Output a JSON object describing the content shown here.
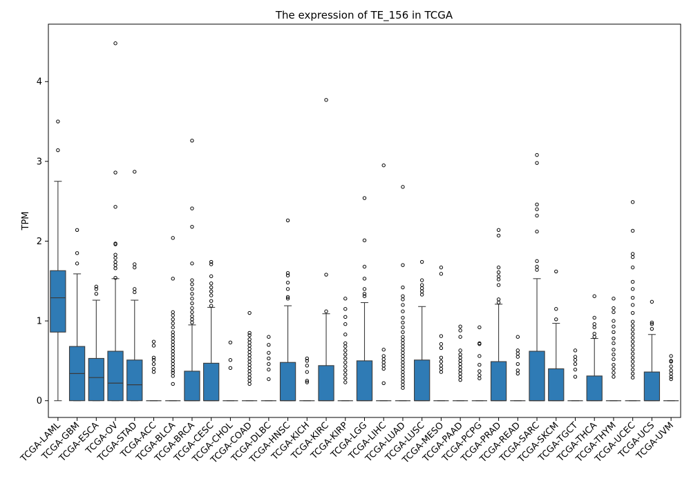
{
  "chart_data": {
    "type": "box",
    "title": "The expression of TE_156 in TCGA",
    "xlabel": "",
    "ylabel": "TPM",
    "ylim": [
      -0.21,
      4.72
    ],
    "yticks": [
      "0",
      "1",
      "2",
      "3",
      "4"
    ],
    "grid": false,
    "colors": {
      "box": "#2f7bb5",
      "edge": "#3a3a3a",
      "median": "#3a3a3a"
    },
    "categories": [
      "TCGA-LAML",
      "TCGA-GBM",
      "TCGA-ESCA",
      "TCGA-OV",
      "TCGA-STAD",
      "TCGA-ACC",
      "TCGA-BLCA",
      "TCGA-BRCA",
      "TCGA-CESC",
      "TCGA-CHOL",
      "TCGA-COAD",
      "TCGA-DLBC",
      "TCGA-HNSC",
      "TCGA-KICH",
      "TCGA-KIRC",
      "TCGA-KIRP",
      "TCGA-LGG",
      "TCGA-LIHC",
      "TCGA-LUAD",
      "TCGA-LUSC",
      "TCGA-MESO",
      "TCGA-PAAD",
      "TCGA-PCPG",
      "TCGA-PRAD",
      "TCGA-READ",
      "TCGA-SARC",
      "TCGA-SKCM",
      "TCGA-TGCT",
      "TCGA-THCA",
      "TCGA-THYM",
      "TCGA-UCEC",
      "TCGA-UCS",
      "TCGA-UVM"
    ],
    "boxes": [
      {
        "whislo": 0,
        "q1": 0.86,
        "med": 1.29,
        "q3": 1.63,
        "whishi": 2.75,
        "fliers": [
          3.14,
          3.5
        ]
      },
      {
        "whislo": 0,
        "q1": 0,
        "med": 0.34,
        "q3": 0.68,
        "whishi": 1.59,
        "fliers": [
          1.72,
          1.85,
          2.14
        ]
      },
      {
        "whislo": 0,
        "q1": 0,
        "med": 0.29,
        "q3": 0.53,
        "whishi": 1.26,
        "fliers": [
          1.34,
          1.4,
          1.43
        ]
      },
      {
        "whislo": 0,
        "q1": 0,
        "med": 0.22,
        "q3": 0.62,
        "whishi": 1.53,
        "fliers": [
          1.54,
          1.66,
          1.7,
          1.74,
          1.79,
          1.83,
          1.96,
          1.97,
          2.43,
          2.86,
          4.48
        ]
      },
      {
        "whislo": 0,
        "q1": 0,
        "med": 0.2,
        "q3": 0.51,
        "whishi": 1.26,
        "fliers": [
          1.36,
          1.4,
          1.67,
          1.71,
          2.87
        ]
      },
      {
        "whislo": 0,
        "q1": 0,
        "med": 0,
        "q3": 0,
        "whishi": 0,
        "fliers": [
          0.36,
          0.4,
          0.46,
          0.51,
          0.54,
          0.69,
          0.74
        ]
      },
      {
        "whislo": 0,
        "q1": 0,
        "med": 0,
        "q3": 0,
        "whishi": 0,
        "fliers": [
          0.21,
          0.31,
          0.35,
          0.38,
          0.42,
          0.46,
          0.5,
          0.54,
          0.58,
          0.62,
          0.66,
          0.7,
          0.74,
          0.78,
          0.82,
          0.86,
          0.92,
          0.97,
          1.02,
          1.07,
          1.11,
          1.53,
          2.04
        ]
      },
      {
        "whislo": 0,
        "q1": 0,
        "med": 0,
        "q3": 0.37,
        "whishi": 0.95,
        "fliers": [
          0.98,
          1.02,
          1.06,
          1.11,
          1.16,
          1.22,
          1.28,
          1.34,
          1.4,
          1.46,
          1.51,
          1.72,
          2.18,
          2.41,
          3.26
        ]
      },
      {
        "whislo": 0,
        "q1": 0,
        "med": 0,
        "q3": 0.47,
        "whishi": 1.17,
        "fliers": [
          1.19,
          1.25,
          1.32,
          1.37,
          1.42,
          1.47,
          1.56,
          1.71,
          1.74
        ]
      },
      {
        "whislo": 0,
        "q1": 0,
        "med": 0,
        "q3": 0,
        "whishi": 0,
        "fliers": [
          0.41,
          0.51,
          0.73
        ]
      },
      {
        "whislo": 0,
        "q1": 0,
        "med": 0,
        "q3": 0,
        "whishi": 0,
        "fliers": [
          0.21,
          0.25,
          0.29,
          0.33,
          0.37,
          0.41,
          0.45,
          0.49,
          0.53,
          0.57,
          0.61,
          0.65,
          0.69,
          0.73,
          0.77,
          0.82,
          0.85,
          1.1
        ]
      },
      {
        "whislo": 0,
        "q1": 0,
        "med": 0,
        "q3": 0,
        "whishi": 0,
        "fliers": [
          0.27,
          0.39,
          0.46,
          0.53,
          0.6,
          0.7,
          0.8
        ]
      },
      {
        "whislo": 0,
        "q1": 0,
        "med": 0,
        "q3": 0.48,
        "whishi": 1.19,
        "fliers": [
          1.28,
          1.3,
          1.4,
          1.48,
          1.57,
          1.6,
          2.26
        ]
      },
      {
        "whislo": 0,
        "q1": 0,
        "med": 0,
        "q3": 0,
        "whishi": 0,
        "fliers": [
          0.23,
          0.25,
          0.36,
          0.44,
          0.5,
          0.53
        ]
      },
      {
        "whislo": 0,
        "q1": 0,
        "med": 0,
        "q3": 0.44,
        "whishi": 1.09,
        "fliers": [
          1.12,
          1.58,
          3.77
        ]
      },
      {
        "whislo": 0,
        "q1": 0,
        "med": 0,
        "q3": 0,
        "whishi": 0,
        "fliers": [
          0.23,
          0.28,
          0.33,
          0.38,
          0.43,
          0.48,
          0.53,
          0.58,
          0.63,
          0.68,
          0.72,
          0.83,
          0.96,
          1.05,
          1.15,
          1.28
        ]
      },
      {
        "whislo": 0,
        "q1": 0,
        "med": 0,
        "q3": 0.5,
        "whishi": 1.23,
        "fliers": [
          1.31,
          1.34,
          1.4,
          1.53,
          1.68,
          2.01,
          2.54
        ]
      },
      {
        "whislo": 0,
        "q1": 0,
        "med": 0,
        "q3": 0,
        "whishi": 0,
        "fliers": [
          0.22,
          0.4,
          0.44,
          0.48,
          0.52,
          0.56,
          0.64,
          2.95
        ]
      },
      {
        "whislo": 0,
        "q1": 0,
        "med": 0,
        "q3": 0,
        "whishi": 0,
        "fliers": [
          0.16,
          0.2,
          0.24,
          0.28,
          0.32,
          0.36,
          0.4,
          0.44,
          0.48,
          0.52,
          0.56,
          0.6,
          0.64,
          0.68,
          0.72,
          0.76,
          0.8,
          0.86,
          0.92,
          0.98,
          1.04,
          1.12,
          1.2,
          1.27,
          1.31,
          1.42,
          1.7,
          2.68
        ]
      },
      {
        "whislo": 0,
        "q1": 0,
        "med": 0,
        "q3": 0.51,
        "whishi": 1.18,
        "fliers": [
          1.33,
          1.37,
          1.41,
          1.45,
          1.51,
          1.74
        ]
      },
      {
        "whislo": 0,
        "q1": 0,
        "med": 0,
        "q3": 0,
        "whishi": 0,
        "fliers": [
          0.36,
          0.4,
          0.44,
          0.49,
          0.54,
          0.66,
          0.71,
          0.81,
          1.59,
          1.67
        ]
      },
      {
        "whislo": 0,
        "q1": 0,
        "med": 0,
        "q3": 0,
        "whishi": 0,
        "fliers": [
          0.26,
          0.3,
          0.34,
          0.38,
          0.42,
          0.46,
          0.5,
          0.54,
          0.58,
          0.63,
          0.8,
          0.88,
          0.93
        ]
      },
      {
        "whislo": 0,
        "q1": 0,
        "med": 0,
        "q3": 0,
        "whishi": 0,
        "fliers": [
          0.28,
          0.32,
          0.37,
          0.45,
          0.56,
          0.71,
          0.72,
          0.92
        ]
      },
      {
        "whislo": 0,
        "q1": 0,
        "med": 0,
        "q3": 0.49,
        "whishi": 1.21,
        "fliers": [
          1.23,
          1.27,
          1.45,
          1.52,
          1.56,
          1.61,
          1.67,
          2.07,
          2.14
        ]
      },
      {
        "whislo": 0,
        "q1": 0,
        "med": 0,
        "q3": 0,
        "whishi": 0,
        "fliers": [
          0.34,
          0.38,
          0.46,
          0.55,
          0.59,
          0.63,
          0.8
        ]
      },
      {
        "whislo": 0,
        "q1": 0,
        "med": 0,
        "q3": 0.62,
        "whishi": 1.53,
        "fliers": [
          1.64,
          1.68,
          1.75,
          2.12,
          2.32,
          2.4,
          2.46,
          2.98,
          3.08
        ]
      },
      {
        "whislo": 0,
        "q1": 0,
        "med": 0,
        "q3": 0.4,
        "whishi": 0.97,
        "fliers": [
          1.02,
          1.15,
          1.62
        ]
      },
      {
        "whislo": 0,
        "q1": 0,
        "med": 0,
        "q3": 0,
        "whishi": 0,
        "fliers": [
          0.3,
          0.39,
          0.46,
          0.51,
          0.55,
          0.63
        ]
      },
      {
        "whislo": 0,
        "q1": 0,
        "med": 0,
        "q3": 0.31,
        "whishi": 0.78,
        "fliers": [
          0.8,
          0.84,
          0.92,
          0.96,
          1.04,
          1.31
        ]
      },
      {
        "whislo": 0,
        "q1": 0,
        "med": 0,
        "q3": 0,
        "whishi": 0,
        "fliers": [
          0.3,
          0.35,
          0.4,
          0.45,
          0.52,
          0.58,
          0.64,
          0.72,
          0.78,
          0.86,
          0.93,
          1.0,
          1.11,
          1.16,
          1.28
        ]
      },
      {
        "whislo": 0,
        "q1": 0,
        "med": 0,
        "q3": 0,
        "whishi": 0,
        "fliers": [
          0.29,
          0.34,
          0.39,
          0.44,
          0.49,
          0.54,
          0.59,
          0.64,
          0.69,
          0.74,
          0.79,
          0.84,
          0.89,
          0.94,
          0.99,
          1.1,
          1.2,
          1.29,
          1.4,
          1.49,
          1.67,
          1.8,
          1.84,
          2.13,
          2.49
        ]
      },
      {
        "whislo": 0,
        "q1": 0,
        "med": 0,
        "q3": 0.36,
        "whishi": 0.83,
        "fliers": [
          0.9,
          0.96,
          0.98,
          1.24
        ]
      },
      {
        "whislo": 0,
        "q1": 0,
        "med": 0,
        "q3": 0,
        "whishi": 0,
        "fliers": [
          0.27,
          0.3,
          0.34,
          0.38,
          0.43,
          0.49,
          0.5,
          0.56
        ]
      }
    ]
  }
}
